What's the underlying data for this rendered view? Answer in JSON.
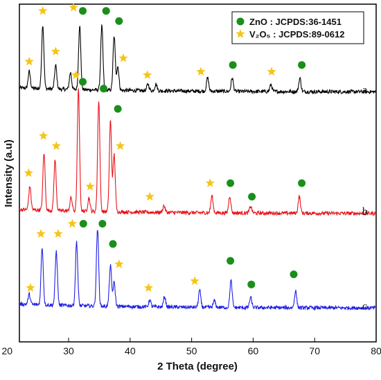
{
  "chart_data": {
    "type": "line",
    "xlabel": "2 Theta (degree)",
    "ylabel": "Intensity (a.u)",
    "xlim": [
      22,
      80
    ],
    "xticks": [
      20,
      30,
      40,
      50,
      60,
      70,
      80
    ],
    "legend": {
      "placement": "top-right",
      "entries": [
        {
          "marker": "circle",
          "color": "#1a8f1a",
          "text": "ZnO : JCPDS:36-1451"
        },
        {
          "marker": "star",
          "color": "#f5c518",
          "text": "V₂O₅ : JCPDS:89-0612"
        }
      ]
    },
    "series": [
      {
        "name": "a",
        "color": "#000000",
        "baseline": 0.74,
        "peaks": [
          {
            "x": 23.6,
            "h": 0.05
          },
          {
            "x": 25.8,
            "h": 0.19
          },
          {
            "x": 27.9,
            "h": 0.07
          },
          {
            "x": 30.3,
            "h": 0.05
          },
          {
            "x": 31.8,
            "h": 0.19
          },
          {
            "x": 35.4,
            "h": 0.19
          },
          {
            "x": 37.4,
            "h": 0.16
          },
          {
            "x": 38.0,
            "h": 0.07
          },
          {
            "x": 42.9,
            "h": 0.02
          },
          {
            "x": 44.2,
            "h": 0.02
          },
          {
            "x": 52.6,
            "h": 0.04
          },
          {
            "x": 56.6,
            "h": 0.04
          },
          {
            "x": 62.9,
            "h": 0.02
          },
          {
            "x": 67.6,
            "h": 0.04
          }
        ],
        "markers": [
          {
            "type": "star",
            "x": 23.6,
            "h": 0.09
          },
          {
            "type": "star",
            "x": 25.8,
            "h": 0.24
          },
          {
            "type": "star",
            "x": 27.9,
            "h": 0.12
          },
          {
            "type": "star",
            "x": 30.8,
            "h": 0.25
          },
          {
            "type": "circle",
            "x": 32.3,
            "h": 0.24
          },
          {
            "type": "circle",
            "x": 36.1,
            "h": 0.24
          },
          {
            "type": "circle",
            "x": 38.2,
            "h": 0.21
          },
          {
            "type": "star",
            "x": 38.9,
            "h": 0.1
          },
          {
            "type": "star",
            "x": 42.8,
            "h": 0.05
          },
          {
            "type": "star",
            "x": 51.5,
            "h": 0.06
          },
          {
            "type": "circle",
            "x": 56.7,
            "h": 0.08
          },
          {
            "type": "star",
            "x": 63.0,
            "h": 0.06
          },
          {
            "type": "circle",
            "x": 67.9,
            "h": 0.08
          }
        ],
        "label": "a"
      },
      {
        "name": "b",
        "color": "#e8131a",
        "baseline": 0.38,
        "peaks": [
          {
            "x": 23.7,
            "h": 0.07
          },
          {
            "x": 26.0,
            "h": 0.17
          },
          {
            "x": 27.8,
            "h": 0.15
          },
          {
            "x": 30.4,
            "h": 0.04
          },
          {
            "x": 31.6,
            "h": 0.36
          },
          {
            "x": 33.3,
            "h": 0.04
          },
          {
            "x": 34.9,
            "h": 0.33
          },
          {
            "x": 36.8,
            "h": 0.27
          },
          {
            "x": 37.4,
            "h": 0.17
          },
          {
            "x": 45.5,
            "h": 0.02
          },
          {
            "x": 53.3,
            "h": 0.05
          },
          {
            "x": 56.2,
            "h": 0.05
          },
          {
            "x": 59.6,
            "h": 0.02
          },
          {
            "x": 67.5,
            "h": 0.05
          }
        ],
        "markers": [
          {
            "type": "star",
            "x": 23.5,
            "h": 0.12
          },
          {
            "type": "star",
            "x": 25.9,
            "h": 0.23
          },
          {
            "type": "star",
            "x": 28.0,
            "h": 0.2
          },
          {
            "type": "star",
            "x": 31.2,
            "h": 0.41
          },
          {
            "type": "circle",
            "x": 32.3,
            "h": 0.39
          },
          {
            "type": "star",
            "x": 33.5,
            "h": 0.08
          },
          {
            "type": "circle",
            "x": 35.7,
            "h": 0.37
          },
          {
            "type": "circle",
            "x": 38.0,
            "h": 0.31
          },
          {
            "type": "star",
            "x": 38.4,
            "h": 0.2
          },
          {
            "type": "star",
            "x": 43.2,
            "h": 0.05
          },
          {
            "type": "star",
            "x": 53.0,
            "h": 0.09
          },
          {
            "type": "circle",
            "x": 56.3,
            "h": 0.09
          },
          {
            "type": "circle",
            "x": 59.8,
            "h": 0.05
          },
          {
            "type": "circle",
            "x": 67.9,
            "h": 0.09
          }
        ],
        "label": "b"
      },
      {
        "name": "c",
        "color": "#1f1fe6",
        "baseline": 0.1,
        "peaks": [
          {
            "x": 23.6,
            "h": 0.03
          },
          {
            "x": 25.7,
            "h": 0.17
          },
          {
            "x": 28.0,
            "h": 0.16
          },
          {
            "x": 31.3,
            "h": 0.19
          },
          {
            "x": 34.7,
            "h": 0.23
          },
          {
            "x": 36.8,
            "h": 0.12
          },
          {
            "x": 37.4,
            "h": 0.07
          },
          {
            "x": 43.2,
            "h": 0.02
          },
          {
            "x": 45.6,
            "h": 0.03
          },
          {
            "x": 51.3,
            "h": 0.05
          },
          {
            "x": 53.7,
            "h": 0.02
          },
          {
            "x": 56.4,
            "h": 0.08
          },
          {
            "x": 59.6,
            "h": 0.03
          },
          {
            "x": 66.9,
            "h": 0.05
          }
        ],
        "markers": [
          {
            "type": "star",
            "x": 23.8,
            "h": 0.06
          },
          {
            "type": "star",
            "x": 25.5,
            "h": 0.22
          },
          {
            "type": "star",
            "x": 28.3,
            "h": 0.22
          },
          {
            "type": "star",
            "x": 30.6,
            "h": 0.25
          },
          {
            "type": "circle",
            "x": 32.4,
            "h": 0.25
          },
          {
            "type": "circle",
            "x": 35.5,
            "h": 0.25
          },
          {
            "type": "circle",
            "x": 37.2,
            "h": 0.19
          },
          {
            "type": "star",
            "x": 38.2,
            "h": 0.13
          },
          {
            "type": "star",
            "x": 43.0,
            "h": 0.06
          },
          {
            "type": "star",
            "x": 50.5,
            "h": 0.08
          },
          {
            "type": "circle",
            "x": 56.3,
            "h": 0.14
          },
          {
            "type": "circle",
            "x": 59.7,
            "h": 0.07
          },
          {
            "type": "circle",
            "x": 66.6,
            "h": 0.1
          }
        ],
        "label": "c"
      }
    ]
  }
}
